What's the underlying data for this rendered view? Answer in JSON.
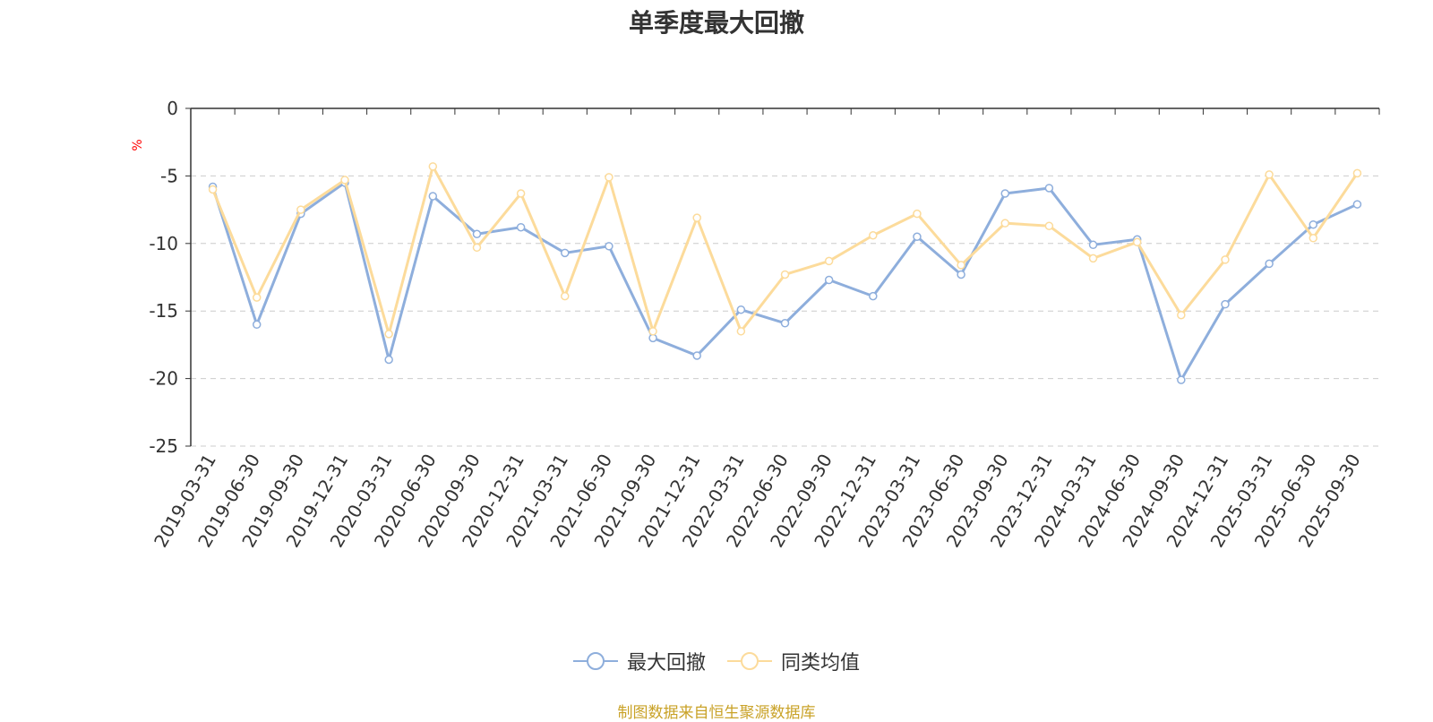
{
  "chart_data": {
    "type": "line",
    "title": "单季度最大回撤",
    "ylabel": "%",
    "xlabel": "",
    "ylim": [
      -25,
      0
    ],
    "yticks": [
      0,
      -5,
      -10,
      -15,
      -20,
      -25
    ],
    "grid": true,
    "legend_position": "bottom-center",
    "categories": [
      "2019-03-31",
      "2019-06-30",
      "2019-09-30",
      "2019-12-31",
      "2020-03-31",
      "2020-06-30",
      "2020-09-30",
      "2020-12-31",
      "2021-03-31",
      "2021-06-30",
      "2021-09-30",
      "2021-12-31",
      "2022-03-31",
      "2022-06-30",
      "2022-09-30",
      "2022-12-31",
      "2023-03-31",
      "2023-06-30",
      "2023-09-30",
      "2023-12-31",
      "2024-03-31",
      "2024-06-30",
      "2024-09-30",
      "2024-12-31",
      "2025-03-31",
      "2025-06-30",
      "2025-09-30"
    ],
    "series": [
      {
        "name": "最大回撤",
        "color": "#8eaedc",
        "values": [
          -5.8,
          -16.0,
          -7.8,
          -5.5,
          -18.6,
          -6.5,
          -9.3,
          -8.8,
          -10.7,
          -10.2,
          -17.0,
          -18.3,
          -14.9,
          -15.9,
          -12.7,
          -13.9,
          -9.5,
          -12.3,
          -6.3,
          -5.9,
          -10.1,
          -9.7,
          -20.1,
          -14.5,
          -11.5,
          -8.6,
          -7.1
        ]
      },
      {
        "name": "同类均值",
        "color": "#fcdb9b",
        "values": [
          -6.0,
          -14.0,
          -7.5,
          -5.3,
          -16.7,
          -4.3,
          -10.3,
          -6.3,
          -13.9,
          -5.1,
          -16.5,
          -8.1,
          -16.5,
          -12.3,
          -11.3,
          -9.4,
          -7.8,
          -11.6,
          -8.5,
          -8.7,
          -11.1,
          -9.9,
          -15.3,
          -11.2,
          -4.9,
          -9.6,
          -4.8
        ]
      }
    ]
  },
  "source_note": "制图数据来自恒生聚源数据库"
}
